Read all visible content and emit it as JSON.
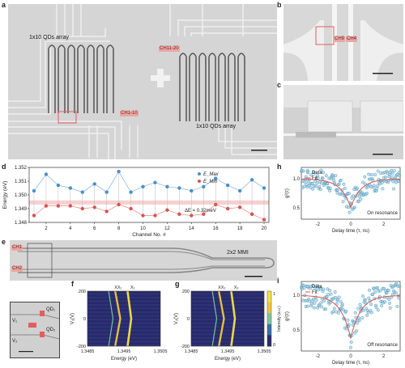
{
  "panels": {
    "a": {
      "label": "a",
      "text_left": "1x10 QDs array",
      "text_right": "1x10 QDs array",
      "tag_ch_top": "CH11-20",
      "tag_ch_bottom": "CH1-10"
    },
    "b": {
      "label": "b",
      "tag_ch9": "CH9",
      "tag_ch4": "CH4"
    },
    "c": {
      "label": "c"
    },
    "d": {
      "label": "d",
      "xlabel": "Channel No. #",
      "ylabel": "Energy (eV)",
      "annotation": "ΔE = 0.32meV",
      "legend_max": "E_Max",
      "legend_min": "E_Min"
    },
    "e": {
      "label": "e",
      "mmi": "2x2 MMI",
      "tag_ch1": "CH1",
      "tag_ch2": "CH2",
      "qd1": "QD₁",
      "qd2": "QD₂",
      "v1": "V₁",
      "v2": "V₂"
    },
    "f": {
      "label": "f",
      "xlabel": "Energy (eV)",
      "ylabel": "V₁(V)",
      "peak1": "XX₁",
      "peak2": "X₁",
      "xticks": [
        "1.3485",
        "1.3495",
        "1.3505"
      ],
      "yticks": [
        "200",
        "0",
        "-200"
      ]
    },
    "g": {
      "label": "g",
      "xlabel": "Energy (eV)",
      "ylabel": "V₂(V)",
      "peak1": "XX₂",
      "peak2": "X₂",
      "xticks": [
        "1.3485",
        "1.3495",
        "1.3505"
      ],
      "yticks": [
        "200",
        "0",
        "-200"
      ],
      "cbar_label": "Intensity (a.u.)",
      "cbar_ticks": [
        "1",
        "0"
      ]
    },
    "h": {
      "label": "h",
      "ylabel": "g²(τ)",
      "xlabel": "Delay time (τ, ns)",
      "legend_data": "Data",
      "legend_fit": "Fit",
      "note": "On resonance",
      "xticks": [
        "-2",
        "0",
        "2"
      ],
      "yticks": [
        "1.0",
        "0.5"
      ]
    },
    "i": {
      "label": "i",
      "ylabel": "g²(τ)",
      "xlabel": "Delay time (τ, ns)",
      "legend_data": "Data",
      "legend_fit": "Fit",
      "note": "Off resonance",
      "xticks": [
        "-2",
        "0",
        "2"
      ],
      "yticks": [
        "1.0",
        "0.5",
        "0"
      ]
    }
  },
  "chart_data": [
    {
      "type": "line",
      "panel": "d",
      "xlabel": "Channel No. #",
      "ylabel": "Energy (eV)",
      "ylim": [
        1.348,
        1.352
      ],
      "xlim": [
        1,
        20
      ],
      "xticks": [
        2,
        4,
        6,
        8,
        10,
        12,
        14,
        16,
        18,
        20
      ],
      "yticks": [
        1.348,
        1.349,
        1.35,
        1.351,
        1.352
      ],
      "x": [
        1,
        2,
        3,
        4,
        5,
        6,
        7,
        8,
        9,
        10,
        11,
        12,
        13,
        14,
        15,
        16,
        17,
        18,
        19,
        20
      ],
      "series": [
        {
          "name": "E_Max",
          "color": "#4a90c9",
          "values": [
            1.3503,
            1.3515,
            1.3507,
            1.3505,
            1.3502,
            1.3508,
            1.3502,
            1.3517,
            1.3502,
            1.3506,
            1.3509,
            1.3506,
            1.3505,
            1.3503,
            1.3506,
            1.3512,
            1.3507,
            1.3503,
            1.3511,
            1.3505
          ]
        },
        {
          "name": "E_Min",
          "color": "#d9534f",
          "values": [
            1.3485,
            1.3492,
            1.3492,
            1.3492,
            1.349,
            1.3491,
            1.3488,
            1.3493,
            1.349,
            1.3485,
            1.3485,
            1.3489,
            1.3486,
            1.3485,
            1.3486,
            1.3493,
            1.349,
            1.3491,
            1.3486,
            1.3482
          ]
        }
      ],
      "band": [
        1.3493,
        1.3496
      ]
    },
    {
      "type": "scatter",
      "panel": "h",
      "xlim": [
        -3,
        3
      ],
      "ylim": [
        0.3,
        1.2
      ],
      "series": [
        {
          "name": "Data",
          "color": "#3d8fb5"
        },
        {
          "name": "Fit",
          "color": "#d9534f"
        }
      ]
    },
    {
      "type": "scatter",
      "panel": "i",
      "xlim": [
        -3,
        3
      ],
      "ylim": [
        0.2,
        1.2
      ],
      "series": [
        {
          "name": "Data",
          "color": "#3d8fb5"
        },
        {
          "name": "Fit",
          "color": "#d9534f"
        }
      ]
    }
  ]
}
